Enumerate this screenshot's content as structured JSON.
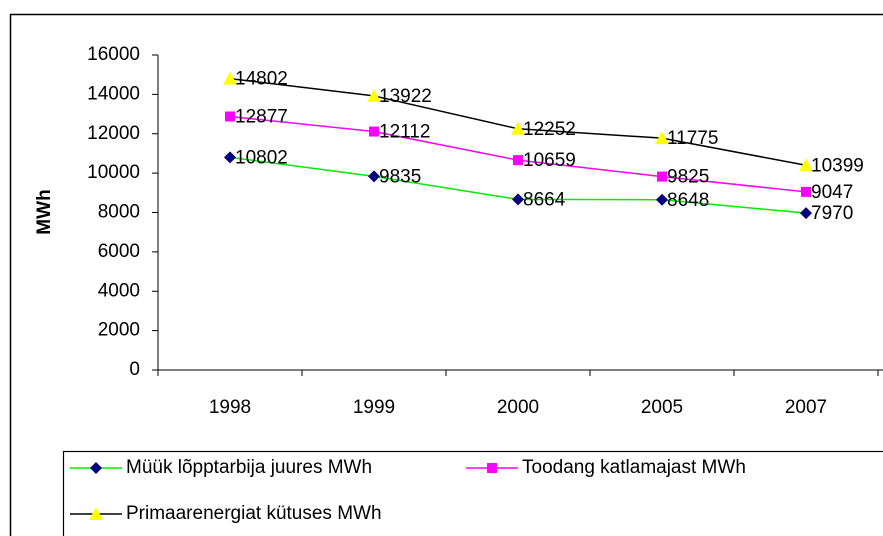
{
  "chart_data": {
    "type": "line",
    "y_label": "MWh",
    "categories": [
      "1998",
      "1999",
      "2000",
      "2005",
      "2007"
    ],
    "series": [
      {
        "name": "Müük lõpptarbija juures MWh",
        "color": "#00ee00",
        "marker": "diamond",
        "marker_color": "#000080",
        "values": [
          10802,
          9835,
          8664,
          8648,
          7970
        ]
      },
      {
        "name": "Toodang katlamajast MWh",
        "color": "#ff00ff",
        "marker": "square",
        "marker_color": "#ff00ff",
        "values": [
          12877,
          12112,
          10659,
          9825,
          9047
        ]
      },
      {
        "name": "Primaarenergiat kütuses MWh",
        "color": "#000000",
        "marker": "triangle",
        "marker_color": "#ffff00",
        "values": [
          14802,
          13922,
          12252,
          11775,
          10399
        ]
      }
    ],
    "ylim": [
      0,
      16000
    ],
    "yticks": [
      0,
      2000,
      4000,
      6000,
      8000,
      10000,
      12000,
      14000,
      16000
    ],
    "grid": false,
    "legend": "bottom"
  }
}
